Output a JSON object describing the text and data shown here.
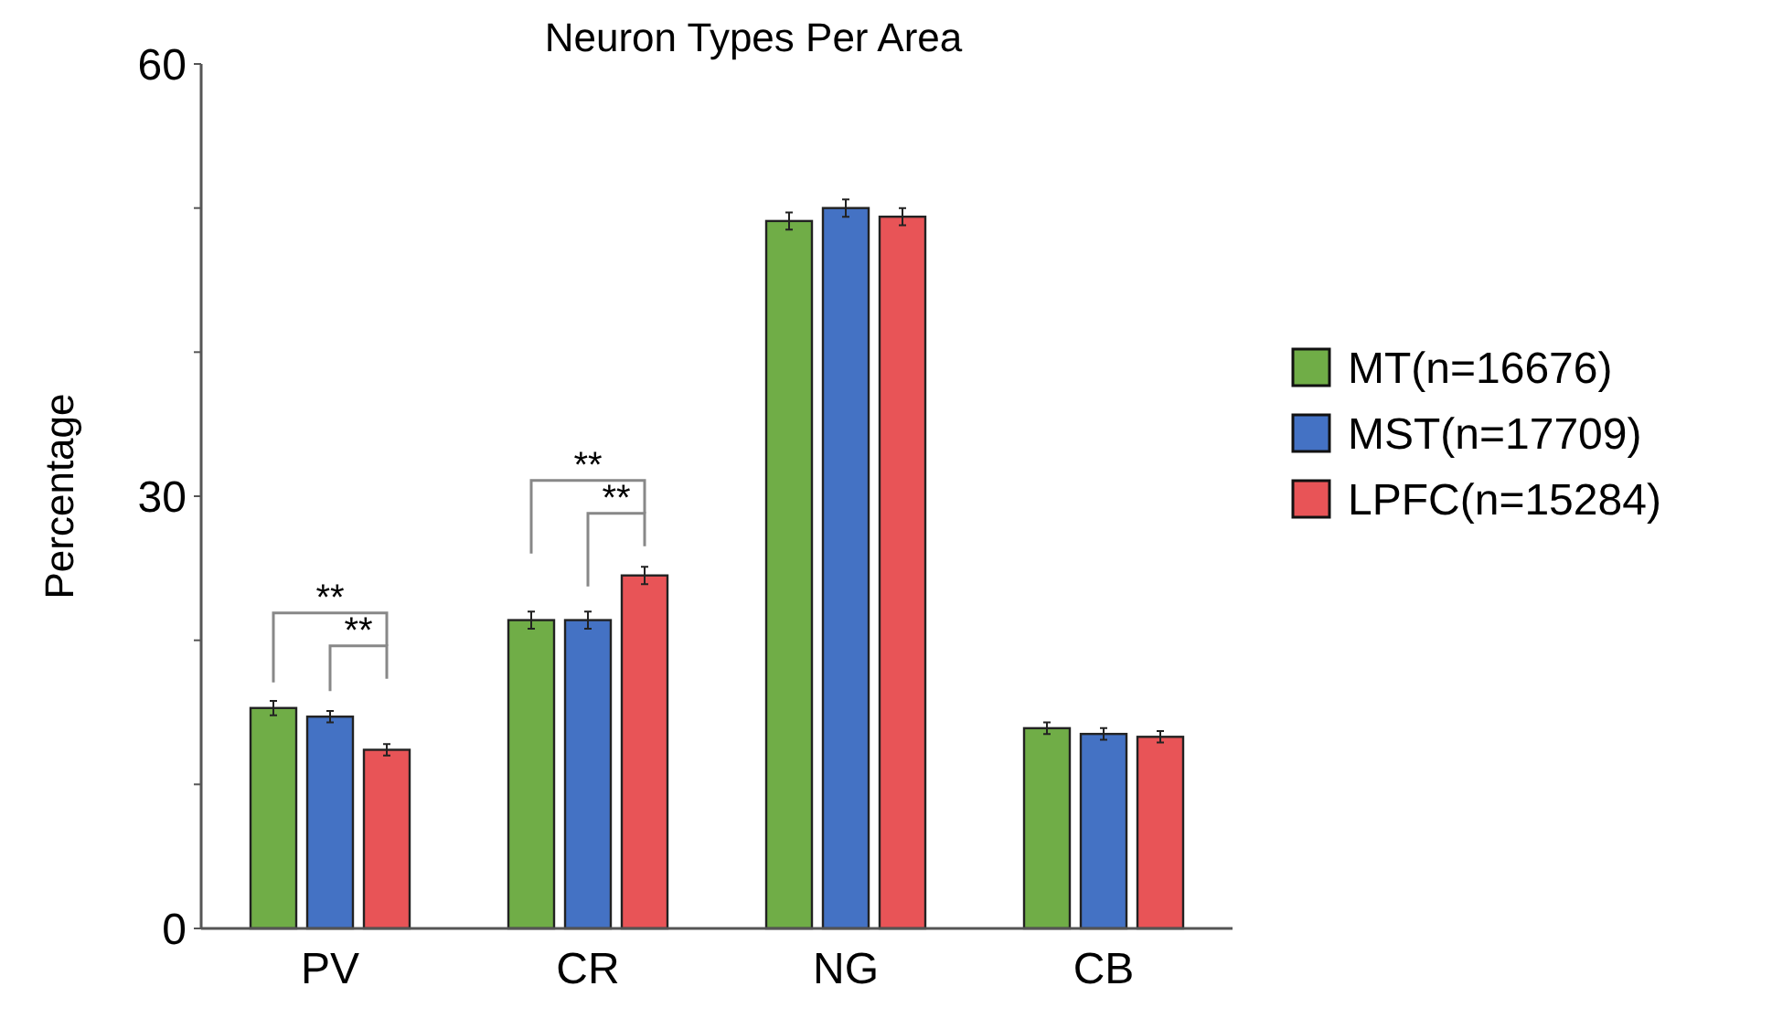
{
  "chart_data": {
    "type": "bar",
    "title": "Neuron Types Per Area",
    "ylabel": "Percentage",
    "categories": [
      "PV",
      "CR",
      "NG",
      "CB"
    ],
    "series": [
      {
        "name": "MT(n=16676)",
        "color": "#70ad47",
        "values": [
          15.3,
          21.4,
          49.1,
          13.9
        ],
        "errors": [
          0.5,
          0.6,
          0.6,
          0.4
        ]
      },
      {
        "name": "MST(n=17709)",
        "color": "#4472c4",
        "values": [
          14.7,
          21.4,
          50.0,
          13.5
        ],
        "errors": [
          0.4,
          0.6,
          0.6,
          0.4
        ]
      },
      {
        "name": "LPFC(n=15284)",
        "color": "#e85457",
        "values": [
          12.4,
          24.5,
          49.4,
          13.3
        ],
        "errors": [
          0.4,
          0.6,
          0.6,
          0.4
        ]
      }
    ],
    "ylim": [
      0,
      60
    ],
    "yticks": [
      0,
      {
        "value": 10,
        "label": null
      },
      {
        "value": 20,
        "label": null
      },
      30,
      {
        "value": 40,
        "label": null
      },
      {
        "value": 50,
        "label": null
      },
      60
    ],
    "legend": "right",
    "grid": false,
    "annotations": [
      "**",
      "**",
      "**",
      "**"
    ]
  }
}
